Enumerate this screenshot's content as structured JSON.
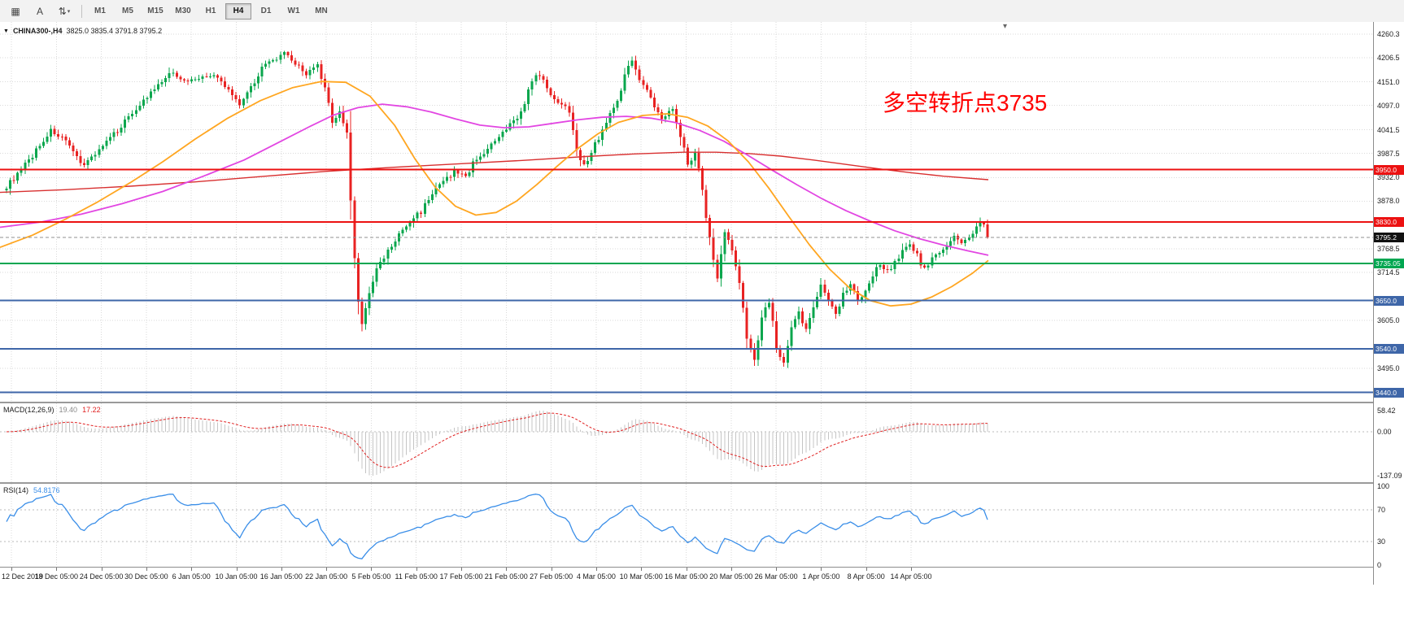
{
  "toolbar": {
    "tools": [
      {
        "name": "chart-grid",
        "glyph": "▦"
      },
      {
        "name": "cursor",
        "glyph": "A"
      },
      {
        "name": "timeframe-cycle",
        "glyph": "⇅"
      }
    ],
    "timeframes": [
      "M1",
      "M5",
      "M15",
      "M30",
      "H1",
      "H4",
      "D1",
      "W1",
      "MN"
    ],
    "active_timeframe": "H4"
  },
  "chart": {
    "symbol_label": "CHINA300-,H4",
    "ohlc_label": "3825.0 3835.4 3791.8 3795.2",
    "annotation": {
      "text": "多空转折点3735",
      "color": "#FF0000"
    },
    "price_axis_labels": [
      {
        "text": "4260.3",
        "price": 4260.3
      },
      {
        "text": "4206.5",
        "price": 4206.5
      },
      {
        "text": "4151.0",
        "price": 4151.0
      },
      {
        "text": "4097.0",
        "price": 4097.0
      },
      {
        "text": "4041.5",
        "price": 4041.5
      },
      {
        "text": "3987.5",
        "price": 3987.5
      },
      {
        "text": "3932.0",
        "price": 3932.0
      },
      {
        "text": "3878.0",
        "price": 3878.0
      },
      {
        "text": "3768.5",
        "price": 3768.5
      },
      {
        "text": "3714.5",
        "price": 3714.5
      },
      {
        "text": "3605.0",
        "price": 3605.0
      },
      {
        "text": "3495.0",
        "price": 3495.0
      }
    ],
    "hlines": [
      {
        "label": "3950.0",
        "price": 3950.0,
        "color": "#EC1111"
      },
      {
        "label": "3830.0",
        "price": 3830.0,
        "color": "#EC1111"
      },
      {
        "label": "3735.05",
        "price": 3735.05,
        "color": "#00A650"
      },
      {
        "label": "3650.0",
        "price": 3650.0,
        "color": "#3E66A8"
      },
      {
        "label": "3540.0",
        "price": 3540.0,
        "color": "#3E66A8"
      },
      {
        "label": "3440.0",
        "price": 3440.0,
        "color": "#3E66A8"
      }
    ],
    "current_price": {
      "label": "3795.2",
      "price": 3795.2,
      "badge_color": "#111111"
    },
    "time_labels": [
      "12 Dec 2019",
      "18 Dec 05:00",
      "24 Dec 05:00",
      "30 Dec 05:00",
      "6 Jan 05:00",
      "10 Jan 05:00",
      "16 Jan 05:00",
      "22 Jan 05:00",
      "5 Feb 05:00",
      "11 Feb 05:00",
      "17 Feb 05:00",
      "21 Feb 05:00",
      "27 Feb 05:00",
      "4 Mar 05:00",
      "10 Mar 05:00",
      "16 Mar 05:00",
      "20 Mar 05:00",
      "26 Mar 05:00",
      "1 Apr 05:00",
      "8 Apr 05:00",
      "14 Apr 05:00"
    ]
  },
  "chart_data": {
    "type": "candlestick",
    "symbol": "CHINA300-",
    "timeframe": "H4",
    "current_ohlc": {
      "open": 3825.0,
      "high": 3835.4,
      "low": 3791.8,
      "close": 3795.2
    },
    "visible_price_range": [
      3430,
      4282
    ],
    "bars": 266,
    "up_color": "#0AA64D",
    "down_color": "#E82222",
    "close_path_anchors": [
      [
        0,
        3912
      ],
      [
        4,
        3948
      ],
      [
        8,
        3995
      ],
      [
        12,
        4040
      ],
      [
        15,
        4022
      ],
      [
        18,
        3988
      ],
      [
        21,
        3962
      ],
      [
        25,
        3996
      ],
      [
        29,
        4030
      ],
      [
        33,
        4072
      ],
      [
        37,
        4108
      ],
      [
        41,
        4142
      ],
      [
        45,
        4175
      ],
      [
        48,
        4152
      ],
      [
        52,
        4160
      ],
      [
        56,
        4166
      ],
      [
        60,
        4132
      ],
      [
        63,
        4102
      ],
      [
        66,
        4140
      ],
      [
        69,
        4185
      ],
      [
        72,
        4200
      ],
      [
        75,
        4215
      ],
      [
        78,
        4192
      ],
      [
        81,
        4170
      ],
      [
        84,
        4186
      ],
      [
        86,
        4132
      ],
      [
        88,
        4062
      ],
      [
        90,
        4082
      ],
      [
        92,
        4032
      ],
      [
        93,
        3880
      ],
      [
        94,
        3752
      ],
      [
        95,
        3645
      ],
      [
        96,
        3602
      ],
      [
        98,
        3662
      ],
      [
        100,
        3722
      ],
      [
        103,
        3762
      ],
      [
        106,
        3800
      ],
      [
        109,
        3830
      ],
      [
        112,
        3856
      ],
      [
        115,
        3896
      ],
      [
        118,
        3922
      ],
      [
        121,
        3946
      ],
      [
        124,
        3936
      ],
      [
        127,
        3976
      ],
      [
        130,
        3996
      ],
      [
        133,
        4022
      ],
      [
        136,
        4052
      ],
      [
        139,
        4082
      ],
      [
        142,
        4150
      ],
      [
        144,
        4172
      ],
      [
        146,
        4132
      ],
      [
        149,
        4106
      ],
      [
        152,
        4086
      ],
      [
        154,
        4002
      ],
      [
        156,
        3956
      ],
      [
        158,
        3992
      ],
      [
        161,
        4042
      ],
      [
        164,
        4092
      ],
      [
        167,
        4162
      ],
      [
        169,
        4206
      ],
      [
        171,
        4162
      ],
      [
        174,
        4112
      ],
      [
        177,
        4062
      ],
      [
        180,
        4096
      ],
      [
        182,
        4032
      ],
      [
        184,
        3962
      ],
      [
        186,
        3992
      ],
      [
        188,
        3902
      ],
      [
        190,
        3792
      ],
      [
        192,
        3702
      ],
      [
        194,
        3812
      ],
      [
        196,
        3762
      ],
      [
        198,
        3692
      ],
      [
        200,
        3562
      ],
      [
        202,
        3522
      ],
      [
        204,
        3612
      ],
      [
        206,
        3652
      ],
      [
        208,
        3542
      ],
      [
        210,
        3502
      ],
      [
        212,
        3582
      ],
      [
        214,
        3622
      ],
      [
        216,
        3582
      ],
      [
        218,
        3642
      ],
      [
        220,
        3682
      ],
      [
        222,
        3652
      ],
      [
        224,
        3622
      ],
      [
        226,
        3666
      ],
      [
        228,
        3692
      ],
      [
        230,
        3652
      ],
      [
        232,
        3676
      ],
      [
        234,
        3706
      ],
      [
        236,
        3736
      ],
      [
        238,
        3716
      ],
      [
        240,
        3742
      ],
      [
        242,
        3762
      ],
      [
        244,
        3782
      ],
      [
        246,
        3752
      ],
      [
        248,
        3722
      ],
      [
        250,
        3746
      ],
      [
        252,
        3762
      ],
      [
        254,
        3776
      ],
      [
        256,
        3796
      ],
      [
        258,
        3782
      ],
      [
        260,
        3792
      ],
      [
        262,
        3812
      ],
      [
        263,
        3830
      ],
      [
        264,
        3825
      ],
      [
        265,
        3795.2
      ]
    ],
    "moving_averages": [
      {
        "name": "ma-slow",
        "color": "#D83030",
        "points": [
          [
            0,
            3898
          ],
          [
            80,
            3904
          ],
          [
            160,
            3912
          ],
          [
            240,
            3922
          ],
          [
            320,
            3934
          ],
          [
            400,
            3946
          ],
          [
            480,
            3955
          ],
          [
            560,
            3963
          ],
          [
            640,
            3971
          ],
          [
            720,
            3980
          ],
          [
            780,
            3986
          ],
          [
            840,
            3990
          ],
          [
            880,
            3990
          ],
          [
            920,
            3987
          ],
          [
            960,
            3981
          ],
          [
            1000,
            3972
          ],
          [
            1040,
            3962
          ],
          [
            1080,
            3952
          ],
          [
            1120,
            3943
          ],
          [
            1160,
            3935
          ],
          [
            1215,
            3927
          ]
        ]
      },
      {
        "name": "ma-mid",
        "color": "#E246E2",
        "points": [
          [
            0,
            3818
          ],
          [
            50,
            3830
          ],
          [
            100,
            3848
          ],
          [
            150,
            3872
          ],
          [
            200,
            3900
          ],
          [
            250,
            3935
          ],
          [
            300,
            3972
          ],
          [
            340,
            4010
          ],
          [
            380,
            4048
          ],
          [
            410,
            4075
          ],
          [
            440,
            4092
          ],
          [
            470,
            4100
          ],
          [
            500,
            4094
          ],
          [
            530,
            4082
          ],
          [
            560,
            4066
          ],
          [
            590,
            4052
          ],
          [
            620,
            4046
          ],
          [
            650,
            4048
          ],
          [
            680,
            4056
          ],
          [
            710,
            4064
          ],
          [
            740,
            4070
          ],
          [
            770,
            4072
          ],
          [
            800,
            4068
          ],
          [
            830,
            4058
          ],
          [
            860,
            4040
          ],
          [
            890,
            4015
          ],
          [
            920,
            3982
          ],
          [
            950,
            3948
          ],
          [
            980,
            3915
          ],
          [
            1010,
            3884
          ],
          [
            1040,
            3856
          ],
          [
            1070,
            3832
          ],
          [
            1100,
            3810
          ],
          [
            1130,
            3792
          ],
          [
            1160,
            3777
          ],
          [
            1190,
            3764
          ],
          [
            1215,
            3754
          ]
        ]
      },
      {
        "name": "ma-fast",
        "color": "#FFA621",
        "points": [
          [
            0,
            3772
          ],
          [
            40,
            3800
          ],
          [
            80,
            3836
          ],
          [
            120,
            3876
          ],
          [
            160,
            3920
          ],
          [
            200,
            3968
          ],
          [
            240,
            4020
          ],
          [
            280,
            4068
          ],
          [
            320,
            4108
          ],
          [
            360,
            4138
          ],
          [
            395,
            4152
          ],
          [
            425,
            4150
          ],
          [
            455,
            4118
          ],
          [
            485,
            4052
          ],
          [
            510,
            3975
          ],
          [
            535,
            3910
          ],
          [
            560,
            3866
          ],
          [
            585,
            3846
          ],
          [
            610,
            3852
          ],
          [
            635,
            3878
          ],
          [
            660,
            3916
          ],
          [
            685,
            3958
          ],
          [
            710,
            3998
          ],
          [
            735,
            4032
          ],
          [
            760,
            4058
          ],
          [
            790,
            4074
          ],
          [
            820,
            4078
          ],
          [
            845,
            4070
          ],
          [
            870,
            4050
          ],
          [
            895,
            4016
          ],
          [
            920,
            3968
          ],
          [
            945,
            3908
          ],
          [
            970,
            3842
          ],
          [
            995,
            3778
          ],
          [
            1020,
            3722
          ],
          [
            1045,
            3678
          ],
          [
            1070,
            3650
          ],
          [
            1095,
            3638
          ],
          [
            1120,
            3642
          ],
          [
            1145,
            3658
          ],
          [
            1170,
            3682
          ],
          [
            1195,
            3712
          ],
          [
            1215,
            3742
          ]
        ]
      }
    ]
  },
  "macd": {
    "name": "MACD(12,26,9)",
    "value_main": "19.40",
    "value_signal": "17.22",
    "axis_labels": [
      "58.42",
      "0.00",
      "-137.09"
    ],
    "histogram_color": "#C4C4C4",
    "signal_color": "#E02020"
  },
  "rsi": {
    "name": "RSI(14)",
    "value": "54.8176",
    "axis_labels": [
      "100",
      "70",
      "30",
      "0"
    ],
    "axis_values": [
      100,
      70,
      30,
      0
    ],
    "levels": [
      70,
      30
    ],
    "line_color": "#3A8EE8"
  }
}
